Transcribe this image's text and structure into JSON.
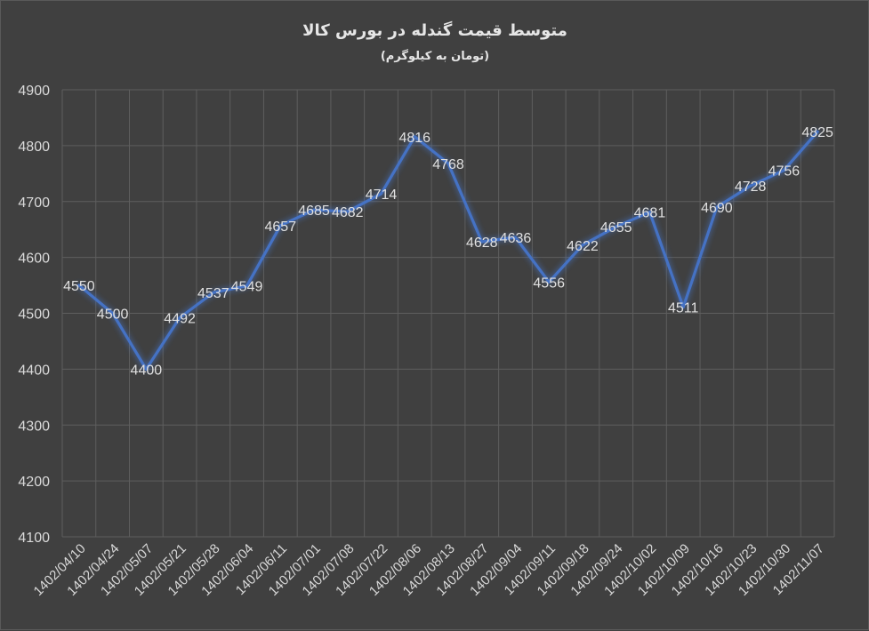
{
  "chart_data": {
    "type": "line",
    "title": "متوسط قیمت گندله در بورس کالا",
    "subtitle": "(تومان به کیلوگرم)",
    "xlabel": "",
    "ylabel": "",
    "ylim": [
      4100,
      4900
    ],
    "yticks": [
      "4100",
      "4200",
      "4300",
      "4400",
      "4500",
      "4600",
      "4700",
      "4800",
      "4900"
    ],
    "categories": [
      "1402/04/10",
      "1402/04/24",
      "1402/05/07",
      "1402/05/21",
      "1402/05/28",
      "1402/06/04",
      "1402/06/11",
      "1402/07/01",
      "1402/07/08",
      "1402/07/22",
      "1402/08/06",
      "1402/08/13",
      "1402/08/27",
      "1402/09/04",
      "1402/09/11",
      "1402/09/18",
      "1402/09/24",
      "1402/10/02",
      "1402/10/09",
      "1402/10/16",
      "1402/10/23",
      "1402/10/30",
      "1402/11/07"
    ],
    "series": [
      {
        "values": [
          4550,
          4500,
          4400,
          4492,
          4537,
          4549,
          4657,
          4685,
          4682,
          4714,
          4816,
          4768,
          4628,
          4636,
          4556,
          4622,
          4655,
          4681,
          4511,
          4690,
          4728,
          4756,
          4825
        ]
      }
    ],
    "grid": true,
    "legend": "none",
    "colors": {
      "background": "#404040",
      "line": "#4472c4",
      "glow": "#6f9fff",
      "grid": "#5e5e5e",
      "text": "#d9d9d9"
    }
  }
}
